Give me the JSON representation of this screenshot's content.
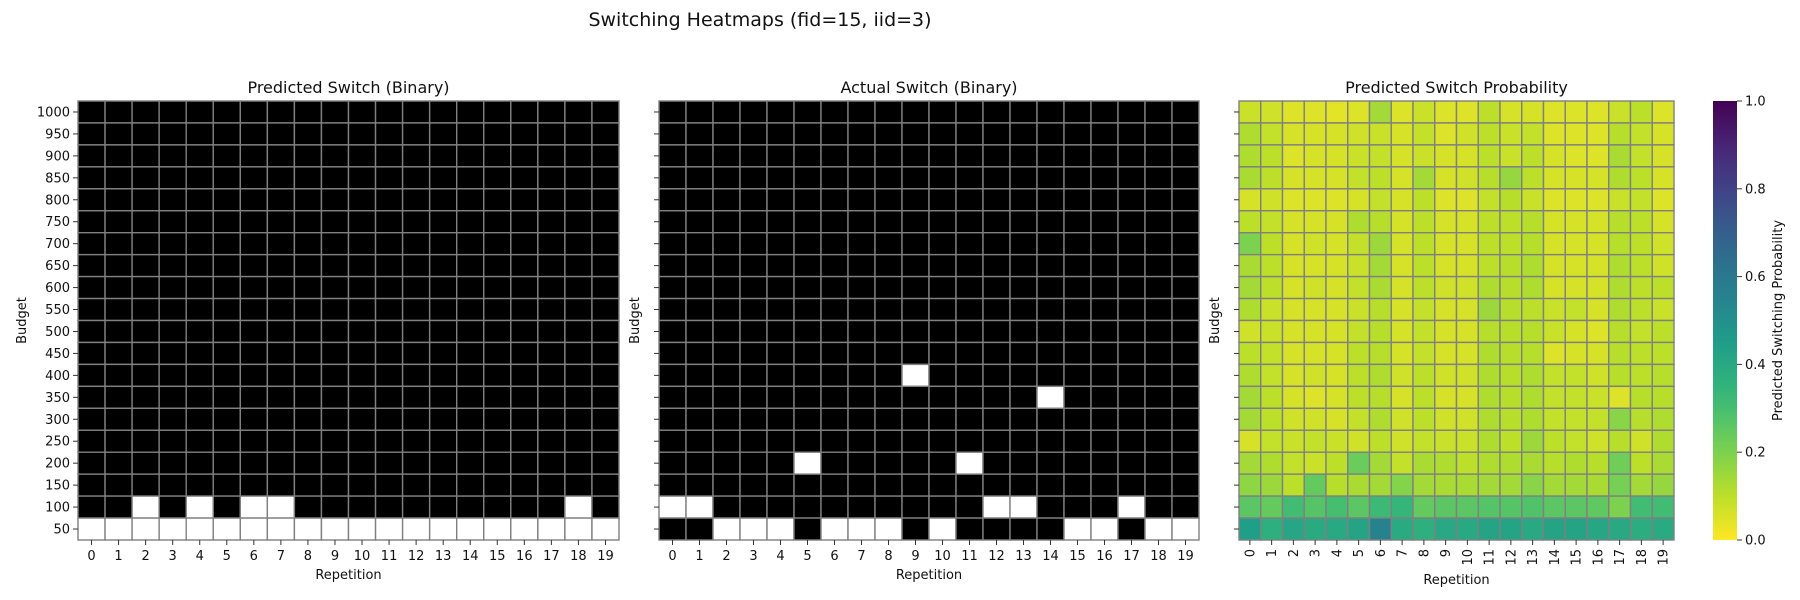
{
  "figure_title": "Switching Heatmaps (fid=15, iid=3)",
  "colors": {
    "binary_on": "#000000",
    "binary_off": "#ffffff",
    "cell_border": "#808080",
    "viridis_r_stops": [
      "#fde725",
      "#b5de2b",
      "#6ece58",
      "#35b779",
      "#1f9e89",
      "#26828e",
      "#31688e",
      "#3e4989",
      "#482878",
      "#440154"
    ]
  },
  "chart_data": [
    {
      "type": "heatmap",
      "title": "Predicted Switch (Binary)",
      "xlabel": "Repetition",
      "ylabel": "Budget",
      "x": [
        0,
        1,
        2,
        3,
        4,
        5,
        6,
        7,
        8,
        9,
        10,
        11,
        12,
        13,
        14,
        15,
        16,
        17,
        18,
        19
      ],
      "y": [
        1000,
        950,
        900,
        850,
        800,
        750,
        700,
        650,
        600,
        550,
        500,
        450,
        400,
        350,
        300,
        250,
        200,
        150,
        100,
        50
      ],
      "value_encoding": "1 = switch (black), 0 = no switch (white)",
      "switch_off_cells": {
        "100": [
          2,
          4,
          6,
          7,
          18
        ],
        "50": [
          0,
          1,
          2,
          3,
          4,
          5,
          6,
          7,
          8,
          9,
          10,
          11,
          12,
          13,
          14,
          15,
          16,
          17,
          18,
          19
        ]
      }
    },
    {
      "type": "heatmap",
      "title": "Actual Switch (Binary)",
      "xlabel": "Repetition",
      "ylabel": "Budget",
      "x": [
        0,
        1,
        2,
        3,
        4,
        5,
        6,
        7,
        8,
        9,
        10,
        11,
        12,
        13,
        14,
        15,
        16,
        17,
        18,
        19
      ],
      "y": [
        1000,
        950,
        900,
        850,
        800,
        750,
        700,
        650,
        600,
        550,
        500,
        450,
        400,
        350,
        300,
        250,
        200,
        150,
        100,
        50
      ],
      "value_encoding": "1 = switch (black), 0 = no switch (white)",
      "switch_off_cells": {
        "400": [
          9
        ],
        "350": [
          14
        ],
        "200": [
          5,
          11
        ],
        "100": [
          0,
          1,
          12,
          13,
          17
        ],
        "50": [
          2,
          3,
          4,
          6,
          7,
          8,
          10,
          15,
          16,
          18,
          19
        ]
      }
    },
    {
      "type": "heatmap",
      "title": "Predicted Switch Probability",
      "xlabel": "Repetition",
      "ylabel": "Budget",
      "x": [
        0,
        1,
        2,
        3,
        4,
        5,
        6,
        7,
        8,
        9,
        10,
        11,
        12,
        13,
        14,
        15,
        16,
        17,
        18,
        19
      ],
      "y": [
        1000,
        950,
        900,
        850,
        800,
        750,
        700,
        650,
        600,
        550,
        500,
        450,
        400,
        350,
        300,
        250,
        200,
        150,
        100,
        50
      ],
      "colormap": "viridis_r",
      "vmin": 0.0,
      "vmax": 1.0,
      "colorbar_label": "Predicted Switching Probability",
      "colorbar_ticks": [
        "0.0",
        "0.2",
        "0.4",
        "0.6",
        "0.8",
        "1.0"
      ],
      "values": [
        [
          0.08,
          0.07,
          0.05,
          0.05,
          0.04,
          0.05,
          0.14,
          0.05,
          0.08,
          0.05,
          0.05,
          0.1,
          0.06,
          0.06,
          0.05,
          0.05,
          0.05,
          0.08,
          0.1,
          0.05
        ],
        [
          0.12,
          0.09,
          0.06,
          0.06,
          0.06,
          0.07,
          0.08,
          0.06,
          0.09,
          0.05,
          0.07,
          0.1,
          0.08,
          0.09,
          0.05,
          0.05,
          0.05,
          0.11,
          0.09,
          0.06
        ],
        [
          0.12,
          0.1,
          0.05,
          0.06,
          0.06,
          0.08,
          0.09,
          0.06,
          0.08,
          0.06,
          0.06,
          0.1,
          0.08,
          0.1,
          0.06,
          0.05,
          0.05,
          0.13,
          0.09,
          0.06
        ],
        [
          0.13,
          0.1,
          0.06,
          0.06,
          0.06,
          0.09,
          0.1,
          0.06,
          0.14,
          0.06,
          0.07,
          0.11,
          0.16,
          0.1,
          0.06,
          0.06,
          0.06,
          0.12,
          0.1,
          0.06
        ],
        [
          0.06,
          0.07,
          0.05,
          0.05,
          0.05,
          0.06,
          0.09,
          0.06,
          0.1,
          0.05,
          0.05,
          0.09,
          0.11,
          0.08,
          0.05,
          0.05,
          0.05,
          0.08,
          0.09,
          0.05
        ],
        [
          0.1,
          0.09,
          0.06,
          0.06,
          0.06,
          0.12,
          0.11,
          0.06,
          0.1,
          0.06,
          0.06,
          0.1,
          0.1,
          0.11,
          0.06,
          0.06,
          0.06,
          0.11,
          0.1,
          0.06
        ],
        [
          0.2,
          0.1,
          0.06,
          0.07,
          0.06,
          0.09,
          0.15,
          0.06,
          0.1,
          0.06,
          0.06,
          0.1,
          0.1,
          0.11,
          0.06,
          0.06,
          0.06,
          0.11,
          0.1,
          0.07
        ],
        [
          0.13,
          0.1,
          0.06,
          0.06,
          0.06,
          0.08,
          0.14,
          0.06,
          0.1,
          0.06,
          0.06,
          0.1,
          0.11,
          0.12,
          0.06,
          0.06,
          0.06,
          0.12,
          0.1,
          0.07
        ],
        [
          0.14,
          0.1,
          0.06,
          0.07,
          0.06,
          0.09,
          0.13,
          0.06,
          0.1,
          0.07,
          0.07,
          0.12,
          0.11,
          0.12,
          0.06,
          0.06,
          0.06,
          0.12,
          0.1,
          0.1
        ],
        [
          0.12,
          0.08,
          0.06,
          0.06,
          0.06,
          0.08,
          0.11,
          0.06,
          0.09,
          0.06,
          0.06,
          0.15,
          0.11,
          0.1,
          0.08,
          0.09,
          0.06,
          0.12,
          0.1,
          0.08
        ],
        [
          0.07,
          0.08,
          0.06,
          0.06,
          0.06,
          0.09,
          0.11,
          0.06,
          0.09,
          0.06,
          0.06,
          0.11,
          0.11,
          0.11,
          0.08,
          0.06,
          0.05,
          0.11,
          0.09,
          0.1
        ],
        [
          0.1,
          0.09,
          0.06,
          0.06,
          0.06,
          0.1,
          0.11,
          0.06,
          0.09,
          0.06,
          0.06,
          0.12,
          0.11,
          0.11,
          0.05,
          0.06,
          0.06,
          0.11,
          0.1,
          0.1
        ],
        [
          0.12,
          0.09,
          0.06,
          0.07,
          0.06,
          0.1,
          0.12,
          0.07,
          0.1,
          0.07,
          0.07,
          0.12,
          0.11,
          0.12,
          0.09,
          0.09,
          0.07,
          0.11,
          0.1,
          0.11
        ],
        [
          0.14,
          0.1,
          0.06,
          0.05,
          0.06,
          0.1,
          0.11,
          0.06,
          0.1,
          0.06,
          0.06,
          0.12,
          0.11,
          0.12,
          0.09,
          0.09,
          0.08,
          0.05,
          0.11,
          0.11
        ],
        [
          0.14,
          0.1,
          0.07,
          0.07,
          0.06,
          0.09,
          0.12,
          0.07,
          0.1,
          0.07,
          0.07,
          0.12,
          0.11,
          0.12,
          0.09,
          0.09,
          0.09,
          0.18,
          0.11,
          0.12
        ],
        [
          0.06,
          0.09,
          0.08,
          0.09,
          0.08,
          0.07,
          0.1,
          0.07,
          0.09,
          0.08,
          0.08,
          0.12,
          0.1,
          0.15,
          0.1,
          0.09,
          0.07,
          0.11,
          0.07,
          0.12
        ],
        [
          0.14,
          0.12,
          0.09,
          0.08,
          0.1,
          0.23,
          0.14,
          0.09,
          0.13,
          0.12,
          0.1,
          0.12,
          0.12,
          0.13,
          0.11,
          0.12,
          0.11,
          0.22,
          0.1,
          0.13
        ],
        [
          0.17,
          0.15,
          0.1,
          0.24,
          0.11,
          0.13,
          0.14,
          0.19,
          0.14,
          0.13,
          0.13,
          0.14,
          0.14,
          0.18,
          0.14,
          0.14,
          0.13,
          0.21,
          0.14,
          0.16
        ],
        [
          0.26,
          0.24,
          0.31,
          0.27,
          0.3,
          0.26,
          0.32,
          0.34,
          0.24,
          0.26,
          0.26,
          0.27,
          0.27,
          0.28,
          0.26,
          0.26,
          0.25,
          0.2,
          0.31,
          0.31
        ],
        [
          0.44,
          0.37,
          0.41,
          0.39,
          0.4,
          0.42,
          0.55,
          0.39,
          0.37,
          0.4,
          0.4,
          0.42,
          0.42,
          0.4,
          0.42,
          0.42,
          0.41,
          0.4,
          0.38,
          0.39
        ]
      ]
    }
  ]
}
